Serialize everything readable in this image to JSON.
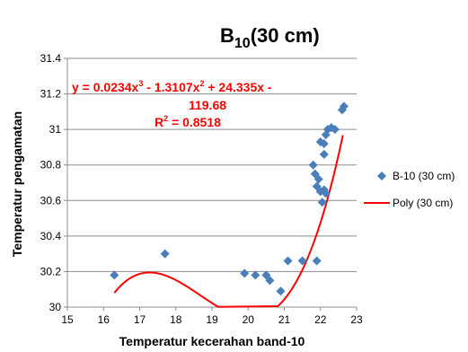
{
  "chart_data": {
    "type": "scatter",
    "title_main": "B",
    "title_sub": "10",
    "title_rest": "(30 cm)",
    "xlabel": "Temperatur kecerahan band-10",
    "ylabel": "Temperatur pengamatan",
    "xlim": [
      15,
      23
    ],
    "ylim": [
      30,
      31.4
    ],
    "x_ticks": [
      "15",
      "16",
      "17",
      "18",
      "19",
      "20",
      "21",
      "22",
      "23"
    ],
    "y_ticks": [
      "30",
      "30.2",
      "30.4",
      "30.6",
      "30.8",
      "31",
      "31.2",
      "31.4"
    ],
    "grid": "horizontal",
    "legend_position": "right",
    "equation_lines": [
      {
        "pre": "y = 0.0234x",
        "sup1": "3",
        "mid1": " - 1.3107x",
        "sup2": "2",
        "post": " + 24.335x -"
      },
      {
        "text": "119.68"
      },
      {
        "pre": "R",
        "sup1": "2",
        "post": " = 0.8518"
      }
    ],
    "colors": {
      "points": "#4a7ebb",
      "trend": "#ff0000",
      "grid": "#8c8c8c",
      "equation": "#ff0000"
    },
    "series": [
      {
        "name": "B-10 (30 cm)",
        "kind": "scatter",
        "marker": "diamond",
        "points": [
          [
            16.3,
            30.18
          ],
          [
            17.7,
            30.3
          ],
          [
            19.9,
            30.19
          ],
          [
            20.2,
            30.18
          ],
          [
            20.5,
            30.18
          ],
          [
            20.6,
            30.15
          ],
          [
            20.9,
            30.09
          ],
          [
            21.1,
            30.26
          ],
          [
            21.5,
            30.26
          ],
          [
            21.9,
            30.26
          ],
          [
            21.8,
            30.8
          ],
          [
            21.85,
            30.75
          ],
          [
            21.95,
            30.72
          ],
          [
            21.9,
            30.68
          ],
          [
            22.0,
            30.65
          ],
          [
            22.1,
            30.66
          ],
          [
            22.05,
            30.59
          ],
          [
            22.0,
            30.93
          ],
          [
            22.1,
            30.92
          ],
          [
            22.15,
            30.97
          ],
          [
            22.2,
            31.0
          ],
          [
            22.3,
            31.01
          ],
          [
            22.4,
            31.0
          ],
          [
            22.1,
            30.86
          ],
          [
            22.6,
            31.11
          ],
          [
            22.65,
            31.13
          ],
          [
            22.15,
            30.64
          ]
        ]
      },
      {
        "name": "Poly (30 cm)",
        "kind": "trendline",
        "coefficients": [
          0.0234,
          -1.3107,
          24.335,
          -119.68
        ],
        "x_range": [
          16.3,
          22.62
        ]
      }
    ]
  }
}
